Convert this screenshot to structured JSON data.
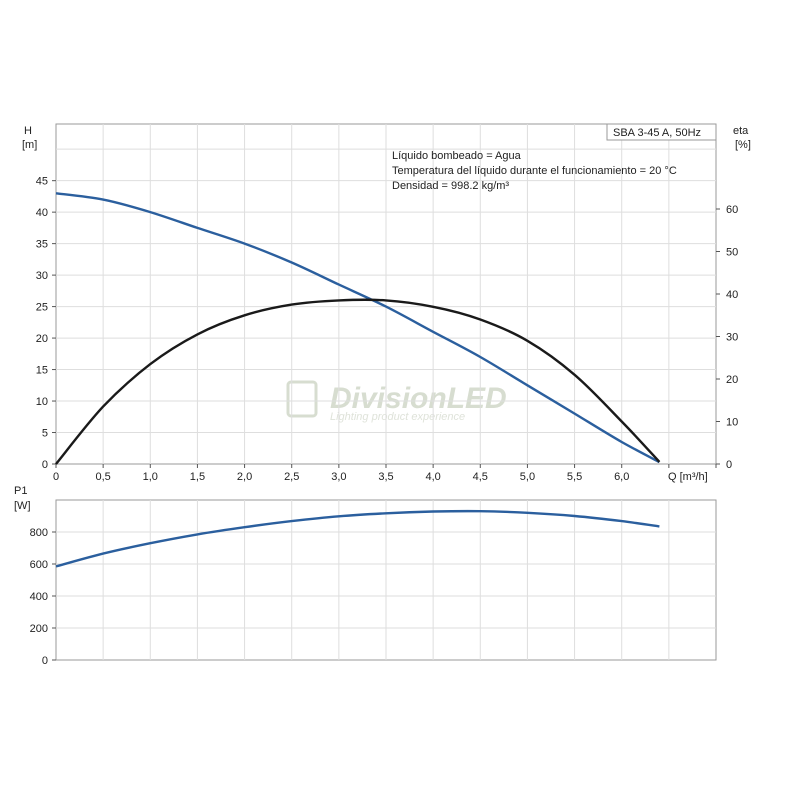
{
  "watermark": {
    "brand": "DivisionLED",
    "tagline": "Lighting product experience"
  },
  "chart_data": [
    {
      "type": "line",
      "title": "SBA 3-45 A, 50Hz",
      "notes": [
        "Líquido bombeado = Agua",
        "Temperatura del líquido durante el funcionamiento = 20 °C",
        "Densidad = 998.2 kg/m³"
      ],
      "xlabel": "Q [m³/h]",
      "ylabel_left": [
        "H",
        "[m]"
      ],
      "ylabel_right": [
        "eta",
        "[%]"
      ],
      "xlim": [
        0,
        7.0
      ],
      "ylim_left": [
        0,
        54
      ],
      "ylim_right": [
        0,
        80
      ],
      "x_ticks": [
        0,
        0.5,
        1.0,
        1.5,
        2.0,
        2.5,
        3.0,
        3.5,
        4.0,
        4.5,
        5.0,
        5.5,
        6.0
      ],
      "x_tick_labels": [
        "0",
        "0,5",
        "1,0",
        "1,5",
        "2,0",
        "2,5",
        "3,0",
        "3,5",
        "4,0",
        "4,5",
        "5,0",
        "5,5",
        "6,0"
      ],
      "y_ticks_left": [
        0,
        5,
        10,
        15,
        20,
        25,
        30,
        35,
        40,
        45
      ],
      "y_ticks_right": [
        0,
        10,
        20,
        30,
        40,
        50,
        60
      ],
      "grid": true,
      "series": [
        {
          "axis": "left",
          "color": "#2b5f9e",
          "x": [
            0,
            0.5,
            1.0,
            1.5,
            2.0,
            2.5,
            3.0,
            3.5,
            4.0,
            4.5,
            5.0,
            5.5,
            6.0,
            6.4
          ],
          "values": [
            43,
            42,
            40,
            37.5,
            35,
            32,
            28.5,
            25,
            21,
            17,
            12.5,
            8,
            3.5,
            0.3
          ]
        },
        {
          "axis": "right",
          "color": "#1a1a1a",
          "x": [
            0,
            0.5,
            1.0,
            1.5,
            2.0,
            2.5,
            3.0,
            3.5,
            4.0,
            4.5,
            5.0,
            5.5,
            6.0,
            6.4
          ],
          "values": [
            0,
            13.5,
            23.5,
            30.5,
            35,
            37.5,
            38.5,
            38.5,
            37,
            34,
            29,
            21,
            10,
            0.5
          ]
        }
      ]
    },
    {
      "type": "line",
      "xlabel": "",
      "ylabel": [
        "P1",
        "[W]"
      ],
      "xlim": [
        0,
        7.0
      ],
      "ylim": [
        0,
        1000
      ],
      "y_ticks": [
        0,
        200,
        400,
        600,
        800
      ],
      "grid": true,
      "series": [
        {
          "color": "#2b5f9e",
          "x": [
            0,
            0.5,
            1.0,
            1.5,
            2.0,
            2.5,
            3.0,
            3.5,
            4.0,
            4.5,
            5.0,
            5.5,
            6.0,
            6.4
          ],
          "values": [
            585,
            665,
            730,
            785,
            830,
            868,
            898,
            917,
            928,
            930,
            920,
            900,
            868,
            835
          ]
        }
      ]
    }
  ]
}
